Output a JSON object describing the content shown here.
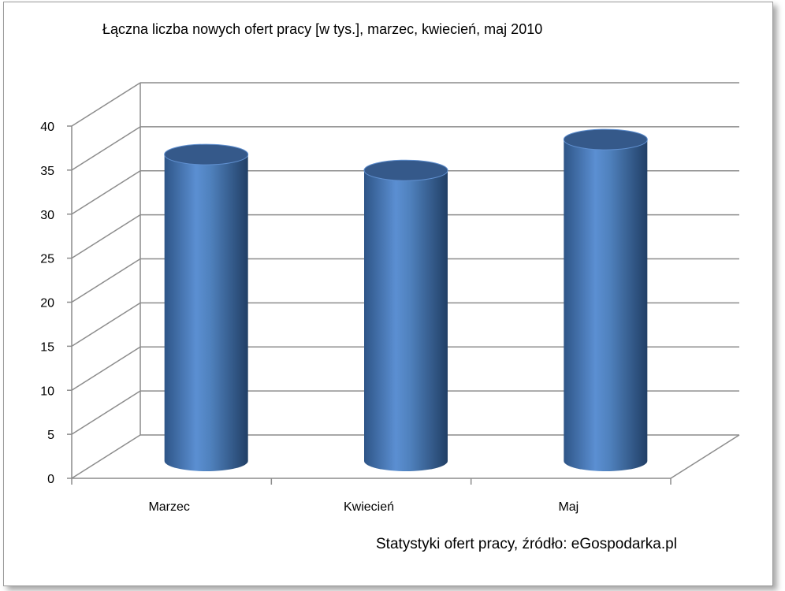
{
  "chart_data": {
    "type": "bar",
    "title": "Łączna liczba nowych ofert pracy [w tys.], marzec, kwiecień,  maj  2010",
    "source_note": "Statystyki ofert pracy, źródło: eGospodarka.pl",
    "categories": [
      "Marzec",
      "Kwiecień",
      "Maj"
    ],
    "values": [
      35.5,
      33.7,
      37.2
    ],
    "ylim": [
      0,
      40
    ],
    "y_ticks": [
      "0",
      "5",
      "10",
      "15",
      "20",
      "25",
      "30",
      "35",
      "40"
    ],
    "y_step": 5,
    "grid": true,
    "legend": "none",
    "style": "3d-cylinder",
    "colors": {
      "bar": "#4f81bd",
      "bar_light": "#7aa3d8",
      "bar_dark": "#2b4f7e",
      "top": "#35598a",
      "grid": "#8c8c8c"
    }
  }
}
